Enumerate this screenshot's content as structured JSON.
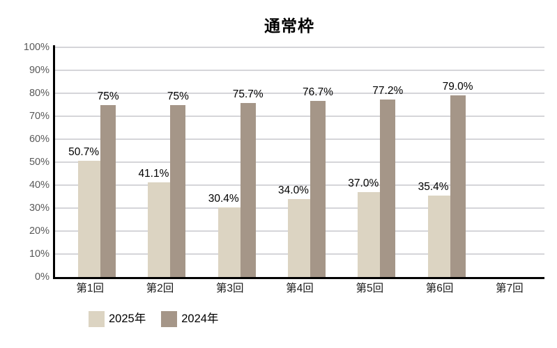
{
  "chart_data": {
    "type": "bar",
    "title": "通常枠",
    "categories": [
      "第1回",
      "第2回",
      "第3回",
      "第4回",
      "第5回",
      "第6回",
      "第7回"
    ],
    "series": [
      {
        "name": "2025年",
        "color": "#DCD4C2",
        "values": [
          50.7,
          41.1,
          30.4,
          34.0,
          37.0,
          35.4,
          null
        ],
        "labels": [
          "50.7%",
          "41.1%",
          "30.4%",
          "34.0%",
          "37.0%",
          "35.4%",
          ""
        ]
      },
      {
        "name": "2024年",
        "color": "#A59688",
        "values": [
          75,
          75,
          75.7,
          76.7,
          77.2,
          79.0,
          null
        ],
        "labels": [
          "75%",
          "75%",
          "75.7%",
          "76.7%",
          "77.2%",
          "79.0%",
          ""
        ]
      }
    ],
    "xlabel": "",
    "ylabel": "",
    "ylim": [
      0,
      100
    ],
    "y_tick_step": 10,
    "y_tick_labels": [
      "0%",
      "10%",
      "20%",
      "30%",
      "40%",
      "50%",
      "60%",
      "70%",
      "80%",
      "90%",
      "100%"
    ],
    "grid": true,
    "legend_position": "bottom-left",
    "colors": {
      "background": "#FFFFFF",
      "gridline": "#D5D5D9",
      "axis_line": "#000000",
      "y_tick_color": "#595959",
      "x_tick_color": "#1A1A1A",
      "value_label_color": "#000000"
    }
  }
}
